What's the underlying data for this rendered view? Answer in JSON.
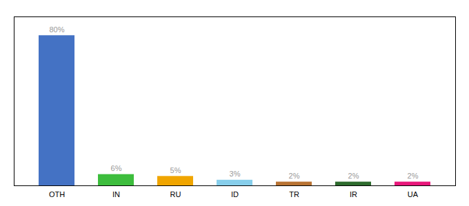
{
  "chart_data": {
    "type": "bar",
    "categories": [
      "OTH",
      "IN",
      "RU",
      "ID",
      "TR",
      "IR",
      "UA"
    ],
    "values": [
      80,
      6,
      5,
      3,
      2,
      2,
      2
    ],
    "value_labels": [
      "80%",
      "6%",
      "5%",
      "3%",
      "2%",
      "2%",
      "2%"
    ],
    "colors": [
      "#4472C4",
      "#3DBD3D",
      "#F0A500",
      "#87CEEB",
      "#B87333",
      "#2E6B2E",
      "#E8177A"
    ],
    "ylim": [
      0,
      90
    ],
    "tick_labels": "x",
    "data_labels": true
  }
}
